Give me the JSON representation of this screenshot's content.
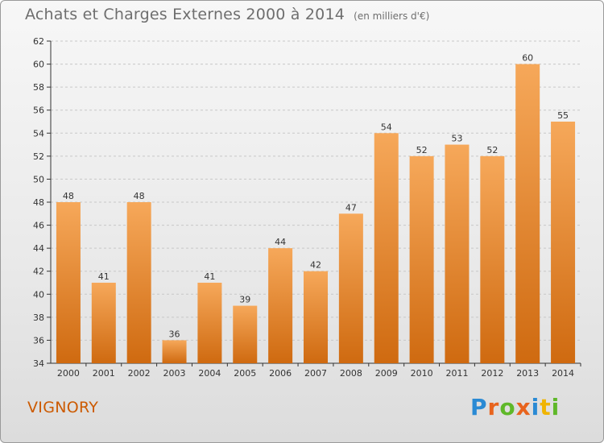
{
  "header": {
    "title": "Achats et Charges Externes 2000 à 2014",
    "subtitle": "(en milliers d'€)"
  },
  "footer": {
    "location": "VIGNORY",
    "brand_letters": [
      "P",
      "r",
      "o",
      "x",
      "i",
      "t",
      "i"
    ],
    "brand_colors": [
      "#2a8ad4",
      "#e8641e",
      "#5fb829",
      "#e8641e",
      "#2a8ad4",
      "#f0b400",
      "#5fb829"
    ]
  },
  "colors": {
    "bar_light": "#f6a85a",
    "bar_dark": "#cf6a10",
    "grid": "#c8c8c8",
    "axis": "#333333"
  },
  "chart_data": {
    "type": "bar",
    "title": "Achats et Charges Externes 2000 à 2014",
    "subtitle": "(en milliers d'€)",
    "categories": [
      "2000",
      "2001",
      "2002",
      "2003",
      "2004",
      "2005",
      "2006",
      "2007",
      "2008",
      "2009",
      "2010",
      "2011",
      "2012",
      "2013",
      "2014"
    ],
    "values": [
      48,
      41,
      48,
      36,
      41,
      39,
      44,
      42,
      47,
      54,
      52,
      53,
      52,
      60,
      55
    ],
    "ylim": [
      34,
      62
    ],
    "yticks": [
      34,
      36,
      38,
      40,
      42,
      44,
      46,
      48,
      50,
      52,
      54,
      56,
      58,
      60,
      62
    ],
    "grid": true,
    "data_labels": true
  }
}
